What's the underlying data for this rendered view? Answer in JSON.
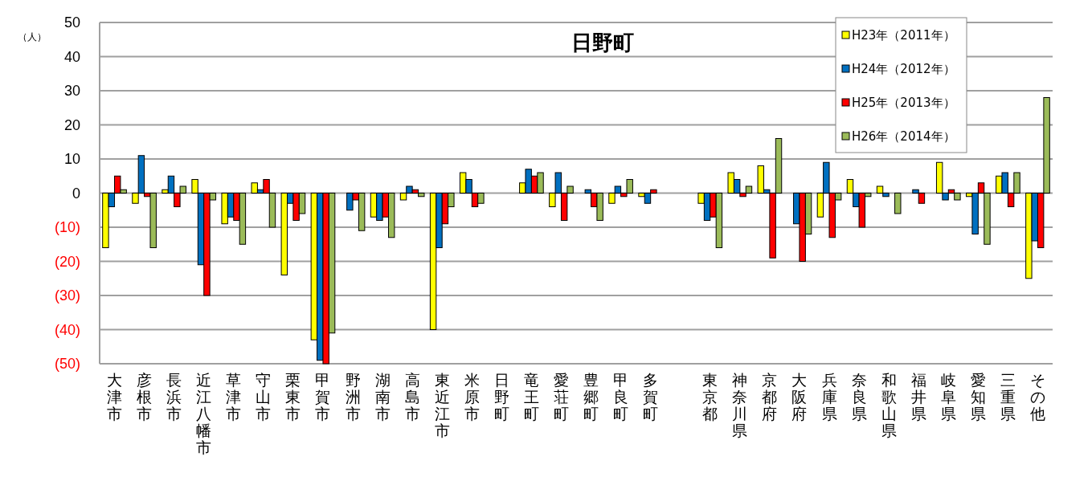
{
  "chart_data": {
    "type": "bar",
    "title": "日野町",
    "ylabel": "（人）",
    "categories": [
      "大津市",
      "彦根市",
      "長浜市",
      "近江八幡市",
      "草津市",
      "守山市",
      "栗東市",
      "甲賀市",
      "野洲市",
      "湖南市",
      "高島市",
      "東近江市",
      "米原市",
      "日野町",
      "竜王町",
      "愛荘町",
      "豊郷町",
      "甲良町",
      "多賀町",
      null,
      "東京都",
      "神奈川県",
      "京都府",
      "大阪府",
      "兵庫県",
      "奈良県",
      "和歌山県",
      "福井県",
      "岐阜県",
      "愛知県",
      "三重県",
      "その他"
    ],
    "series": [
      {
        "name": "H23年（2011年）",
        "color": "#ffff00",
        "values": [
          -16,
          -3,
          1,
          4,
          -9,
          3,
          -24,
          -43,
          0,
          -7,
          -2,
          -40,
          6,
          0,
          3,
          -4,
          0,
          -3,
          -1,
          null,
          -3,
          6,
          8,
          0,
          -7,
          4,
          2,
          0,
          9,
          -1,
          5,
          -25
        ]
      },
      {
        "name": "H24年（2012年）",
        "color": "#0070c0",
        "values": [
          -4,
          11,
          5,
          -21,
          -7,
          1,
          -3,
          -49,
          -5,
          -8,
          2,
          -16,
          4,
          0,
          7,
          6,
          1,
          2,
          -3,
          null,
          -8,
          4,
          1,
          -9,
          9,
          -4,
          -1,
          1,
          -2,
          -12,
          6,
          -14
        ]
      },
      {
        "name": "H25年（2013年）",
        "color": "#ff0000",
        "values": [
          5,
          -1,
          -4,
          -30,
          -8,
          4,
          -8,
          -50,
          -2,
          -7,
          1,
          -9,
          -4,
          0,
          5,
          -8,
          -4,
          -1,
          1,
          null,
          -7,
          -1,
          -19,
          -20,
          -13,
          -10,
          0,
          -3,
          1,
          3,
          -4,
          -16
        ]
      },
      {
        "name": "H26年（2014年）",
        "color": "#9bbb59",
        "values": [
          1,
          -16,
          2,
          -2,
          -15,
          -10,
          -6,
          -41,
          -11,
          -13,
          -1,
          -4,
          -3,
          0,
          6,
          2,
          -8,
          4,
          0,
          null,
          -16,
          2,
          16,
          -12,
          -2,
          -1,
          -6,
          0,
          -2,
          -15,
          6,
          28
        ]
      }
    ],
    "ylim": [
      -50,
      50
    ],
    "yticks": [
      {
        "value": -50,
        "label": "(50)"
      },
      {
        "value": -40,
        "label": "(40)"
      },
      {
        "value": -30,
        "label": "(30)"
      },
      {
        "value": -20,
        "label": "(20)"
      },
      {
        "value": -10,
        "label": "(10)"
      },
      0,
      10,
      20,
      30,
      40,
      50
    ],
    "grid": "y",
    "legend": "top right"
  }
}
